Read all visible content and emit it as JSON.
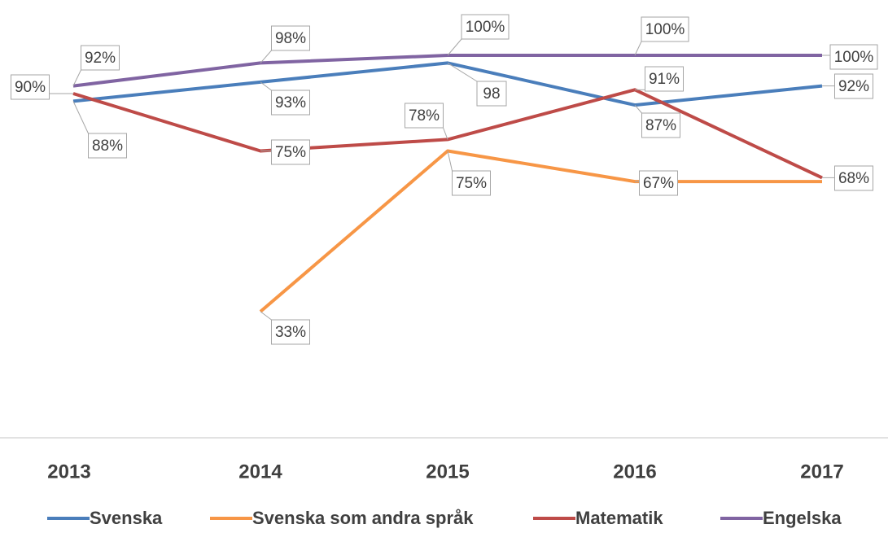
{
  "chart_data": {
    "type": "line",
    "categories": [
      "2013",
      "2014",
      "2015",
      "2016",
      "2017"
    ],
    "series": [
      {
        "name": "Svenska",
        "color": "#4a7ebb",
        "values": [
          88,
          93,
          98,
          87,
          92
        ],
        "value_labels": [
          "88%",
          "93%",
          "98",
          "87%",
          "92%"
        ]
      },
      {
        "name": "Svenska som andra språk",
        "color": "#f79646",
        "values": [
          null,
          33,
          75,
          67,
          67
        ],
        "value_labels": [
          null,
          "33%",
          "75%",
          "67%",
          null
        ]
      },
      {
        "name": "Matematik",
        "color": "#be4b48",
        "values": [
          90,
          75,
          78,
          91,
          68
        ],
        "value_labels": [
          "90%",
          "75%",
          "78%",
          "91%",
          "68%"
        ]
      },
      {
        "name": "Engelska",
        "color": "#8064a2",
        "values": [
          92,
          98,
          100,
          100,
          100
        ],
        "value_labels": [
          "92%",
          "98%",
          "100%",
          "100%",
          "100%"
        ]
      }
    ],
    "ylim": [
      0,
      100
    ],
    "legend": "bottom"
  }
}
